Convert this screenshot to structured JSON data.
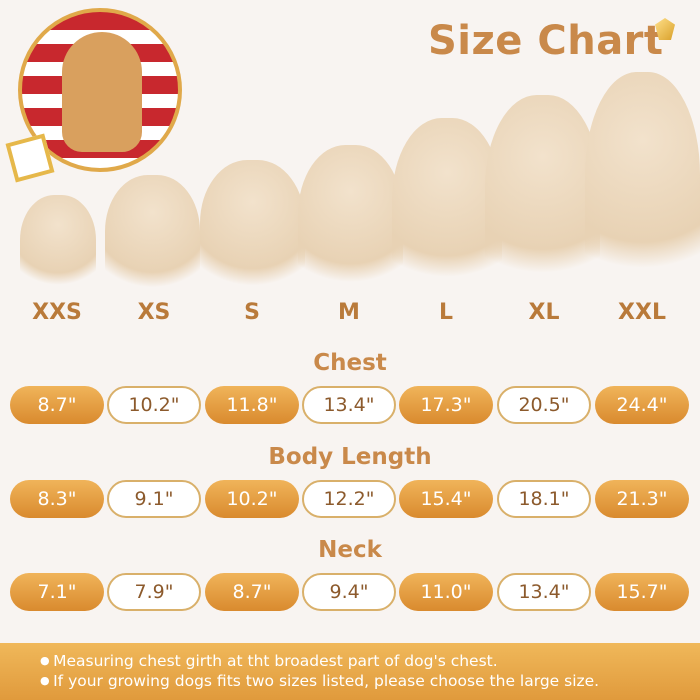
{
  "title": "Size Chart",
  "sizes": [
    "XXS",
    "XS",
    "S",
    "M",
    "L",
    "XL",
    "XXL"
  ],
  "sections": [
    {
      "label": "Chest",
      "values": [
        "8.7\"",
        "10.2\"",
        "11.8\"",
        "13.4\"",
        "17.3\"",
        "20.5\"",
        "24.4\""
      ]
    },
    {
      "label": "Body Length",
      "values": [
        "8.3\"",
        "9.1\"",
        "10.2\"",
        "12.2\"",
        "15.4\"",
        "18.1\"",
        "21.3\""
      ]
    },
    {
      "label": "Neck",
      "values": [
        "7.1\"",
        "7.9\"",
        "8.7\"",
        "9.4\"",
        "11.0\"",
        "13.4\"",
        "15.7\""
      ]
    }
  ],
  "notes": [
    "Measuring chest girth at tht broadest part of dog's chest.",
    "If your growing dogs fits two sizes listed, please choose the large size."
  ],
  "colors": {
    "accent": "#c9894a",
    "pill_gold": "#e09a3c",
    "pill_border": "#d9b06a"
  }
}
